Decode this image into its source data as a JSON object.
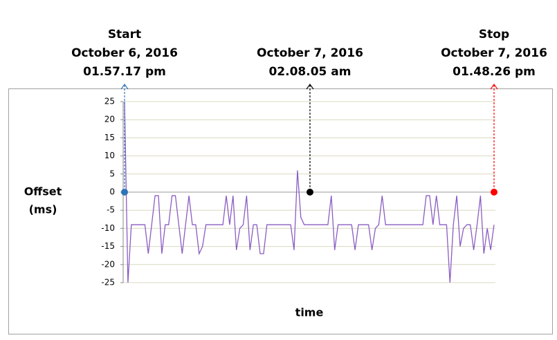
{
  "chart_data": {
    "type": "line",
    "ylabel": [
      "Offset",
      "(ms)"
    ],
    "xlabel": "time",
    "ylim": [
      -25,
      25
    ],
    "yticks": [
      -25,
      -20,
      -15,
      -10,
      -5,
      0,
      5,
      10,
      15,
      20,
      25
    ],
    "grid": true,
    "series": [
      {
        "color": "#8a5cc2",
        "values": [
          25,
          -25,
          -9,
          -9,
          -9,
          -9,
          -9,
          -17,
          -9,
          -1,
          -1,
          -17,
          -9,
          -9,
          -1,
          -1,
          -9,
          -17,
          -9,
          -1,
          -9,
          -9,
          -17,
          -15,
          -9,
          -9,
          -9,
          -9,
          -9,
          -9,
          -1,
          -9,
          -1,
          -16,
          -10,
          -9,
          -1,
          -16,
          -9,
          -9,
          -17,
          -17,
          -9,
          -9,
          -9,
          -9,
          -9,
          -9,
          -9,
          -9,
          -16,
          6,
          -7,
          -9,
          -9,
          -9,
          -9,
          -9,
          -9,
          -9,
          -9,
          -1,
          -16,
          -9,
          -9,
          -9,
          -9,
          -9,
          -16,
          -9,
          -9,
          -9,
          -9,
          -16,
          -10,
          -9,
          -1,
          -9,
          -9,
          -9,
          -9,
          -9,
          -9,
          -9,
          -9,
          -9,
          -9,
          -9,
          -9,
          -1,
          -1,
          -9,
          -1,
          -9,
          -9,
          -9,
          -25,
          -9,
          -1,
          -15,
          -10,
          -9,
          -9,
          -16,
          -9,
          -1,
          -17,
          -10,
          -16,
          -9
        ]
      }
    ],
    "annotations": [
      {
        "lines": [
          "Start",
          "October 6, 2016",
          "01.57.17 pm"
        ],
        "color": "#2e75b6",
        "x": 0,
        "value": 0
      },
      {
        "lines": [
          "October 7, 2016",
          "02.08.05 am"
        ],
        "color": "#000000",
        "x": 54.7,
        "value": 0
      },
      {
        "lines": [
          "Stop",
          "October 7, 2016",
          "01.48.26 pm"
        ],
        "color": "#ff0000",
        "x": 109,
        "value": 0
      }
    ]
  }
}
